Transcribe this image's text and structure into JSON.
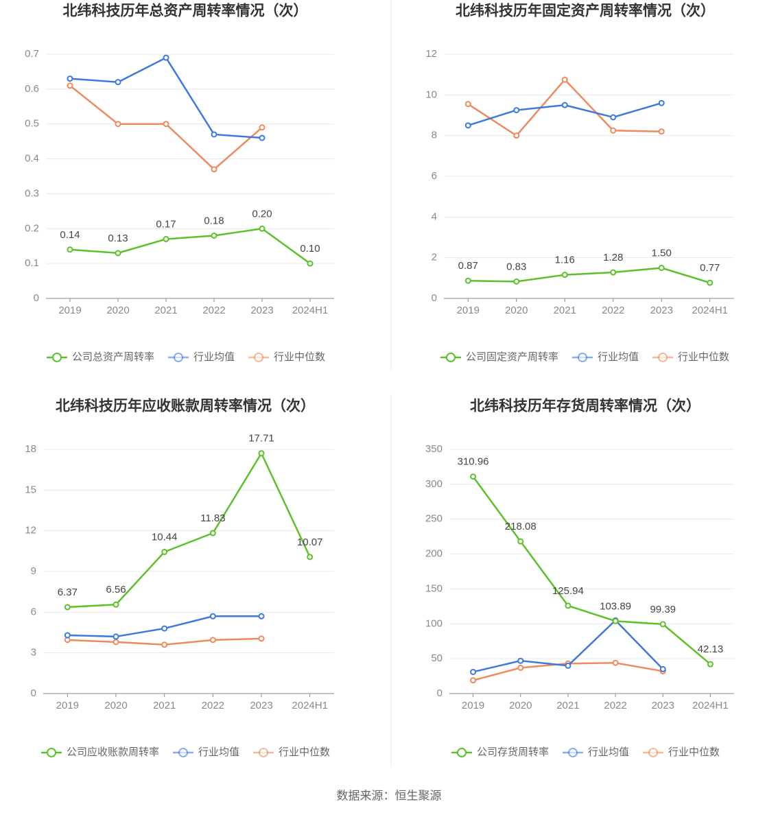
{
  "chart_data": [
    {
      "type": "line",
      "title": "北纬科技历年总资产周转率情况（次）",
      "categories": [
        "2019",
        "2020",
        "2021",
        "2022",
        "2023",
        "2024H1"
      ],
      "series": [
        {
          "name": "公司总资产周转率",
          "color": "#5ac228",
          "values": [
            0.14,
            0.13,
            0.17,
            0.18,
            0.2,
            0.1
          ],
          "value_labels": [
            "0.14",
            "0.13",
            "0.17",
            "0.18",
            "0.20",
            "0.10"
          ]
        },
        {
          "name": "行业均值",
          "color": "#3c78e0",
          "values": [
            0.63,
            0.62,
            0.69,
            0.47,
            0.46,
            null
          ]
        },
        {
          "name": "行业中位数",
          "color": "#f0895c",
          "values": [
            0.61,
            0.5,
            0.5,
            0.37,
            0.49,
            null
          ]
        }
      ],
      "ylim": [
        0,
        0.7
      ],
      "yticks": [
        0,
        0.1,
        0.2,
        0.3,
        0.4,
        0.5,
        0.6,
        0.7
      ],
      "grid": true
    },
    {
      "type": "line",
      "title": "北纬科技历年固定资产周转率情况（次）",
      "categories": [
        "2019",
        "2020",
        "2021",
        "2022",
        "2023",
        "2024H1"
      ],
      "series": [
        {
          "name": "公司固定资产周转率",
          "color": "#5ac228",
          "values": [
            0.87,
            0.83,
            1.16,
            1.28,
            1.5,
            0.77
          ],
          "value_labels": [
            "0.87",
            "0.83",
            "1.16",
            "1.28",
            "1.50",
            "0.77"
          ]
        },
        {
          "name": "行业均值",
          "color": "#3c78e0",
          "values": [
            8.5,
            9.25,
            9.5,
            8.9,
            9.6,
            null
          ]
        },
        {
          "name": "行业中位数",
          "color": "#f0895c",
          "values": [
            9.55,
            8.0,
            10.75,
            8.25,
            8.2,
            null
          ]
        }
      ],
      "ylim": [
        0,
        12
      ],
      "yticks": [
        0,
        2,
        4,
        6,
        8,
        10,
        12
      ],
      "grid": true
    },
    {
      "type": "line",
      "title": "北纬科技历年应收账款周转率情况（次）",
      "categories": [
        "2019",
        "2020",
        "2021",
        "2022",
        "2023",
        "2024H1"
      ],
      "series": [
        {
          "name": "公司应收账款周转率",
          "color": "#5ac228",
          "values": [
            6.37,
            6.56,
            10.44,
            11.83,
            17.71,
            10.07
          ]
        },
        {
          "name": "行业均值",
          "color": "#3c78e0",
          "values": [
            4.3,
            4.2,
            4.8,
            5.7,
            5.7,
            null
          ]
        },
        {
          "name": "行业中位数",
          "color": "#f0895c",
          "values": [
            3.95,
            3.8,
            3.6,
            3.95,
            4.05,
            null
          ]
        }
      ],
      "ylim": [
        0,
        18
      ],
      "yticks": [
        0,
        3,
        6,
        9,
        12,
        15,
        18
      ],
      "grid": true
    },
    {
      "type": "line",
      "title": "北纬科技历年存货周转率情况（次）",
      "categories": [
        "2019",
        "2020",
        "2021",
        "2022",
        "2023",
        "2024H1"
      ],
      "series": [
        {
          "name": "公司存货周转率",
          "color": "#5ac228",
          "values": [
            310.96,
            218.08,
            125.94,
            103.89,
            99.39,
            42.13
          ]
        },
        {
          "name": "行业均值",
          "color": "#3c78e0",
          "values": [
            31,
            47,
            40,
            105,
            35,
            null
          ]
        },
        {
          "name": "行业中位数",
          "color": "#f0895c",
          "values": [
            19,
            37,
            43,
            44,
            32,
            null
          ]
        }
      ],
      "ylim": [
        0,
        350
      ],
      "yticks": [
        0,
        50,
        100,
        150,
        200,
        250,
        300,
        350
      ],
      "grid": true
    }
  ],
  "source": "数据来源：恒生聚源"
}
